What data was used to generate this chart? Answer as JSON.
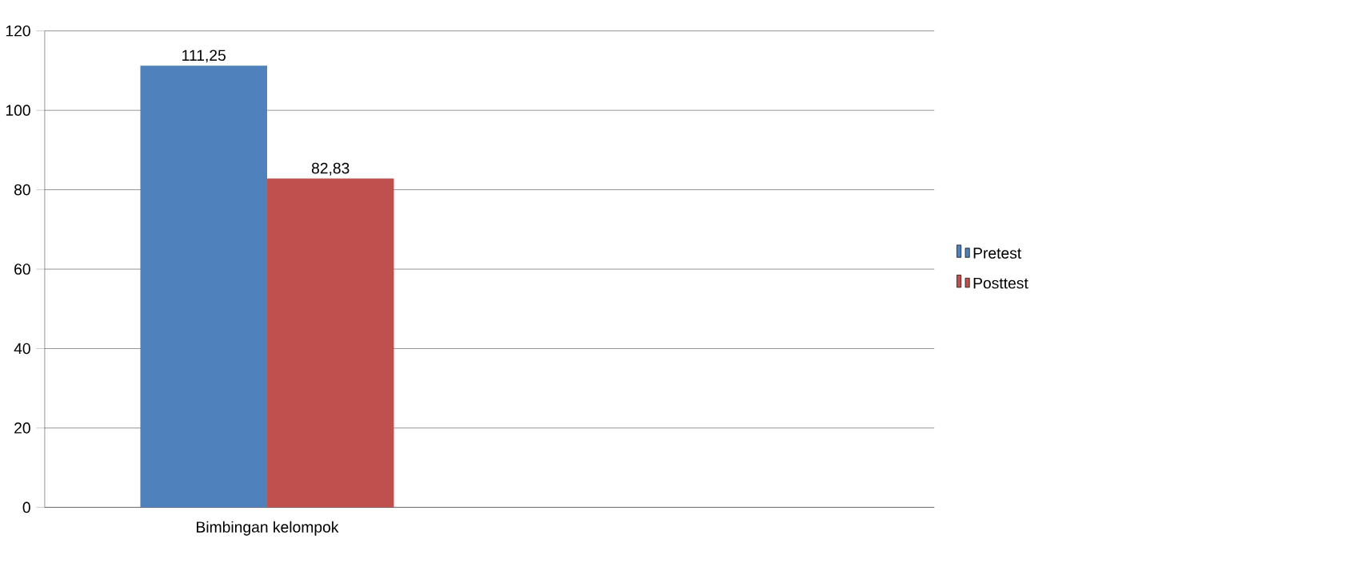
{
  "chart_data": {
    "type": "bar",
    "categories": [
      "Bimbingan kelompok",
      null
    ],
    "series": [
      {
        "name": "Pretest",
        "color": "#4f81bd",
        "values": [
          111.25,
          null
        ],
        "value_labels": [
          "111,25",
          null
        ]
      },
      {
        "name": "Posttest",
        "color": "#c0504d",
        "values": [
          82.83,
          null
        ],
        "value_labels": [
          "82,83",
          null
        ]
      }
    ],
    "ylim": [
      0,
      120
    ],
    "yticks": [
      0,
      20,
      40,
      60,
      80,
      100,
      120
    ],
    "grid": "y",
    "legend": "right"
  }
}
